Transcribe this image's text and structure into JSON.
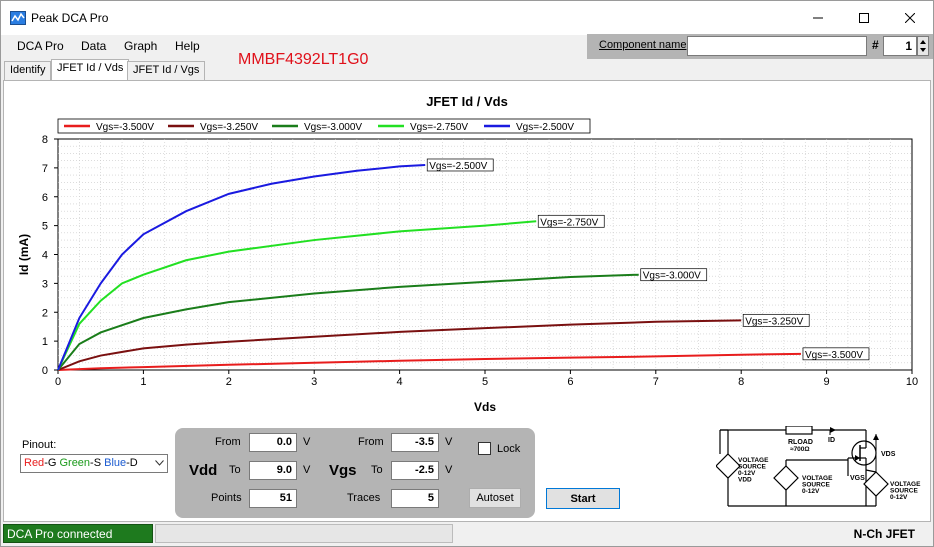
{
  "window": {
    "title": "Peak DCA Pro"
  },
  "menu": [
    "DCA Pro",
    "Data",
    "Graph",
    "Help"
  ],
  "part_name": "MMBF4392LT1G0",
  "component": {
    "label": "Component name",
    "value": "",
    "hash": "#",
    "number": "1"
  },
  "tabs": [
    "Identify",
    "JFET Id / Vds",
    "JFET Id / Vgs"
  ],
  "active_tab": 1,
  "chart_data": {
    "type": "line",
    "title": "JFET Id / Vds",
    "xlabel": "Vds",
    "ylabel": "Id (mA)",
    "xlim": [
      0,
      10
    ],
    "ylim": [
      0,
      8
    ],
    "xticks": [
      "0",
      "1",
      "2",
      "3",
      "4",
      "5",
      "6",
      "7",
      "8",
      "9",
      "10"
    ],
    "yticks": [
      "0",
      "1",
      "2",
      "3",
      "4",
      "5",
      "6",
      "7",
      "8"
    ],
    "grid": true,
    "legend": "top",
    "series": [
      {
        "name": "Vgs=-3.500V",
        "color": "#e81d1d",
        "x": [
          0,
          0.5,
          1,
          2,
          3,
          4,
          5,
          6,
          7,
          8,
          8.7
        ],
        "y": [
          0,
          0.06,
          0.1,
          0.18,
          0.25,
          0.32,
          0.38,
          0.43,
          0.47,
          0.53,
          0.56
        ]
      },
      {
        "name": "Vgs=-3.250V",
        "color": "#7a1010",
        "x": [
          0,
          0.25,
          0.5,
          1,
          1.5,
          2,
          3,
          4,
          5,
          6,
          7,
          8
        ],
        "y": [
          0,
          0.3,
          0.5,
          0.75,
          0.88,
          0.98,
          1.15,
          1.32,
          1.45,
          1.57,
          1.67,
          1.72
        ]
      },
      {
        "name": "Vgs=-3.000V",
        "color": "#1a7d1a",
        "x": [
          0,
          0.25,
          0.5,
          1,
          1.5,
          2,
          3,
          4,
          5,
          6,
          6.8
        ],
        "y": [
          0,
          0.9,
          1.3,
          1.8,
          2.1,
          2.35,
          2.65,
          2.88,
          3.05,
          3.22,
          3.3
        ]
      },
      {
        "name": "Vgs=-2.750V",
        "color": "#22e022",
        "x": [
          0,
          0.25,
          0.5,
          0.75,
          1,
          1.5,
          2,
          3,
          4,
          5,
          5.6
        ],
        "y": [
          0,
          1.6,
          2.4,
          3.0,
          3.3,
          3.8,
          4.1,
          4.5,
          4.8,
          5.0,
          5.15
        ]
      },
      {
        "name": "Vgs=-2.500V",
        "color": "#1a1ae0",
        "x": [
          0,
          0.25,
          0.5,
          0.75,
          1,
          1.5,
          2,
          2.5,
          3,
          3.5,
          4,
          4.3
        ],
        "y": [
          0,
          1.8,
          3.0,
          4.0,
          4.7,
          5.5,
          6.1,
          6.45,
          6.7,
          6.9,
          7.05,
          7.1
        ]
      }
    ]
  },
  "pinout": {
    "label": "Pinout:",
    "parts": [
      {
        "text": "Red",
        "color": "#e81d1d"
      },
      {
        "text": "-G ",
        "color": "#000000"
      },
      {
        "text": "Green",
        "color": "#1a9a1a"
      },
      {
        "text": "-S ",
        "color": "#000000"
      },
      {
        "text": "Blue",
        "color": "#1a5ad0"
      },
      {
        "text": "-D",
        "color": "#000000"
      }
    ]
  },
  "controls": {
    "vdd": {
      "label": "Vdd",
      "from_label": "From",
      "from": "0.0",
      "to_label": "To",
      "to": "9.0",
      "points_label": "Points",
      "points": "51",
      "unit": "V"
    },
    "vgs": {
      "label": "Vgs",
      "from_label": "From",
      "from": "-3.5",
      "to_label": "To",
      "to": "-2.5",
      "traces_label": "Traces",
      "traces": "5",
      "unit": "V"
    },
    "lock": "Lock",
    "autoset": "Autoset",
    "start": "Start"
  },
  "schematic": {
    "rload": "RLOAD",
    "rload_val": "≈700Ω",
    "id": "ID",
    "vds": "VDS",
    "vgs": "VGS",
    "src1": [
      "VOLTAGE",
      "SOURCE",
      "0-12V",
      "VDD"
    ],
    "src2": [
      "VOLTAGE",
      "SOURCE",
      "0-12V"
    ],
    "src3": [
      "VOLTAGE",
      "SOURCE",
      "0-12V"
    ]
  },
  "status": {
    "connection": "DCA Pro connected",
    "device_type": "N-Ch JFET"
  }
}
